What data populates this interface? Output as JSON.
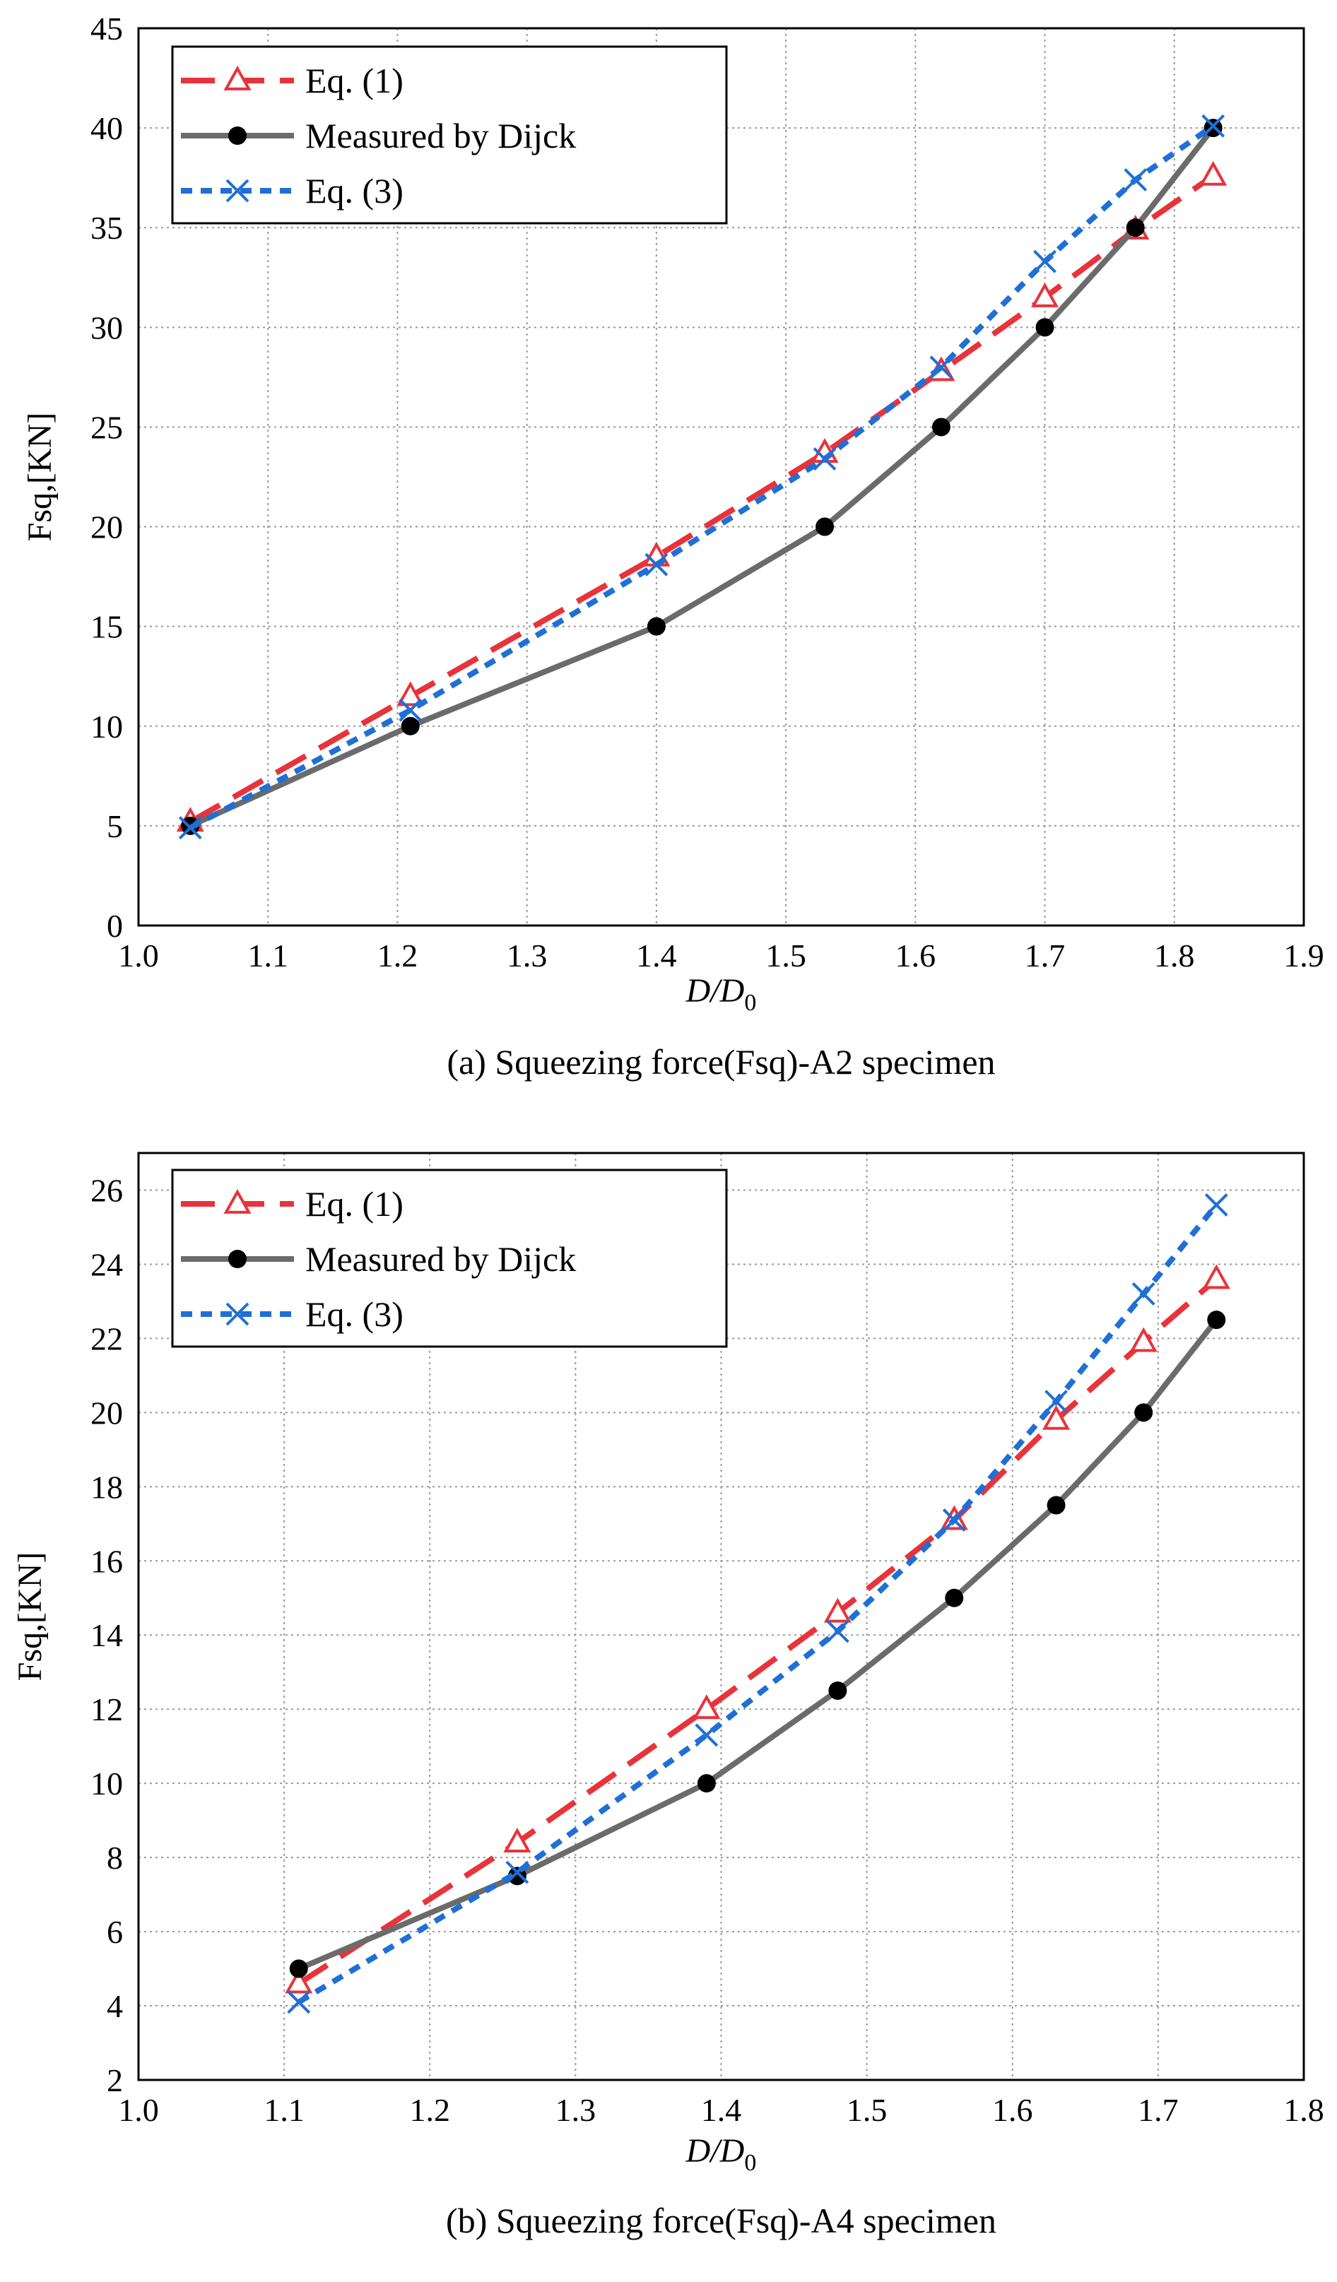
{
  "colors": {
    "eq1": "#e8333a",
    "measured": "#6b6b6b",
    "eq3": "#1f6fd6",
    "grid": "#9a9a9a",
    "axis": "#000000"
  },
  "chart_data": [
    {
      "type": "line",
      "caption": "(a)  Squeezing force(Fsq)-A2 specimen",
      "xlabel": "D/D0",
      "ylabel": "Fsq,[KN]",
      "xlim": [
        1.0,
        1.9
      ],
      "ylim": [
        0,
        45
      ],
      "xticks": [
        "1.0",
        "1.1",
        "1.2",
        "1.3",
        "1.4",
        "1.5",
        "1.6",
        "1.7",
        "1.8",
        "1.9"
      ],
      "yticks": [
        "0",
        "5",
        "10",
        "15",
        "20",
        "25",
        "30",
        "35",
        "40",
        "45"
      ],
      "grid": true,
      "legend": "top-left",
      "series": [
        {
          "name": "Eq. (1)",
          "marker": "triangle",
          "style": "dashed",
          "x": [
            1.04,
            1.21,
            1.4,
            1.53,
            1.62,
            1.7,
            1.77,
            1.83
          ],
          "y": [
            5.2,
            11.5,
            18.5,
            23.7,
            27.8,
            31.5,
            34.9,
            37.6
          ]
        },
        {
          "name": "Measured by Dijck",
          "marker": "circle",
          "style": "solid",
          "x": [
            1.04,
            1.21,
            1.4,
            1.53,
            1.62,
            1.7,
            1.77,
            1.83
          ],
          "y": [
            5,
            10,
            15,
            20,
            25,
            30,
            35,
            40
          ]
        },
        {
          "name": "Eq. (3)",
          "marker": "x",
          "style": "dotted",
          "x": [
            1.04,
            1.21,
            1.4,
            1.53,
            1.62,
            1.7,
            1.77,
            1.83
          ],
          "y": [
            4.9,
            10.8,
            18.1,
            23.4,
            28.0,
            33.3,
            37.4,
            40.1
          ]
        }
      ]
    },
    {
      "type": "line",
      "caption": "(b)  Squeezing force(Fsq)-A4 specimen",
      "xlabel": "D/D0",
      "ylabel": "Fsq,[KN]",
      "xlim": [
        1.0,
        1.8
      ],
      "ylim": [
        2,
        27
      ],
      "xticks": [
        "1.0",
        "1.1",
        "1.2",
        "1.3",
        "1.4",
        "1.5",
        "1.6",
        "1.7",
        "1.8"
      ],
      "yticks": [
        "2",
        "4",
        "6",
        "8",
        "10",
        "12",
        "14",
        "16",
        "18",
        "20",
        "22",
        "24",
        "26"
      ],
      "grid": true,
      "legend": "top-left",
      "series": [
        {
          "name": "Eq. (1)",
          "marker": "triangle",
          "style": "dashed",
          "x": [
            1.11,
            1.26,
            1.39,
            1.48,
            1.56,
            1.63,
            1.69,
            1.74
          ],
          "y": [
            4.6,
            8.4,
            12.0,
            14.6,
            17.1,
            19.8,
            21.9,
            23.6
          ]
        },
        {
          "name": "Measured by Dijck",
          "marker": "circle",
          "style": "solid",
          "x": [
            1.11,
            1.26,
            1.39,
            1.48,
            1.56,
            1.63,
            1.69,
            1.74
          ],
          "y": [
            5,
            7.5,
            10,
            12.5,
            15,
            17.5,
            20,
            22.5
          ]
        },
        {
          "name": "Eq. (3)",
          "marker": "x",
          "style": "dotted",
          "x": [
            1.11,
            1.26,
            1.39,
            1.48,
            1.56,
            1.63,
            1.69,
            1.74
          ],
          "y": [
            4.1,
            7.6,
            11.3,
            14.1,
            17.1,
            20.3,
            23.2,
            25.6
          ]
        }
      ]
    }
  ]
}
